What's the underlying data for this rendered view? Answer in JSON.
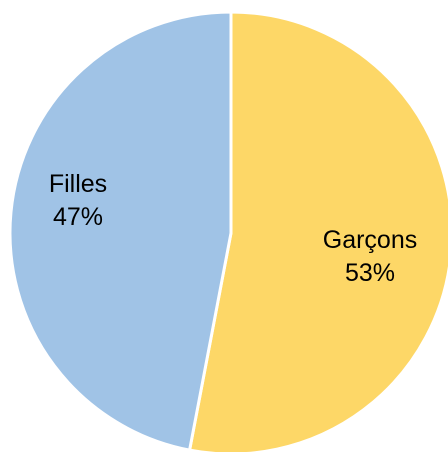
{
  "chart_data": {
    "type": "pie",
    "title": "",
    "slices": [
      {
        "label": "Garçons",
        "value": 53,
        "value_label": "53%",
        "color": "#FDD767"
      },
      {
        "label": "Filles",
        "value": 47,
        "value_label": "47%",
        "color": "#A0C3E6"
      }
    ],
    "legend": "none",
    "start_angle_deg": 0,
    "direction": "clockwise",
    "slice_border_color": "#ffffff"
  }
}
